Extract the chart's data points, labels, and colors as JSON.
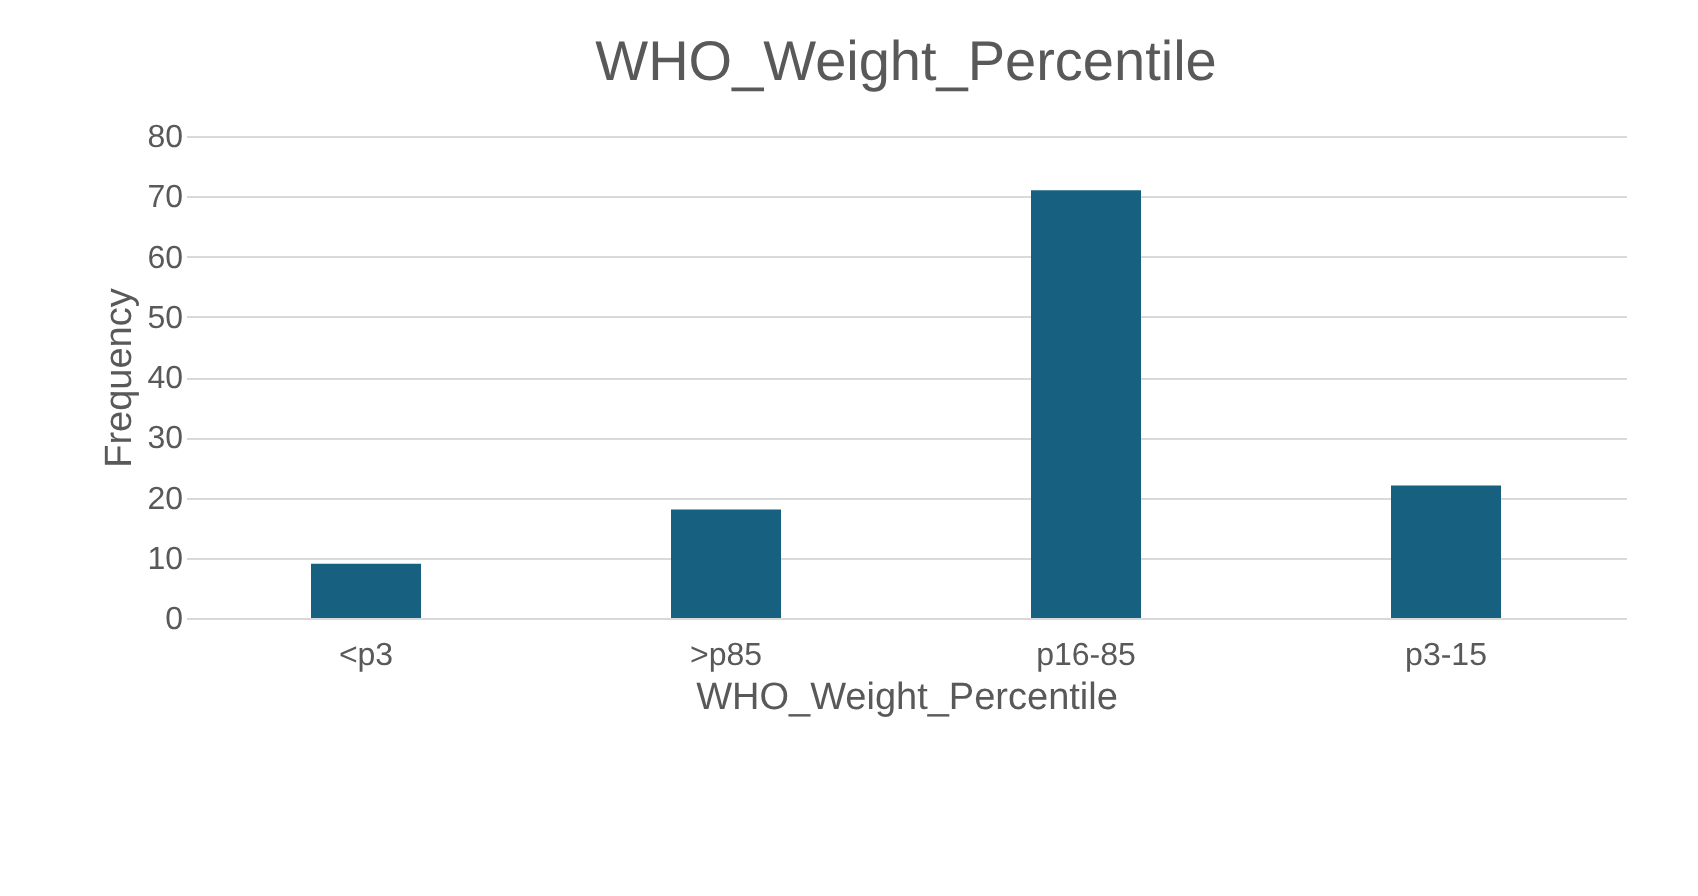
{
  "chart_data": {
    "type": "bar",
    "title": "WHO_Weight_Percentile",
    "xlabel": "WHO_Weight_Percentile",
    "ylabel": "Frequency",
    "categories": [
      "<p3",
      ">p85",
      "p16-85",
      "p3-15"
    ],
    "values": [
      9,
      18,
      71,
      22
    ],
    "color": "#17607f",
    "ylim": [
      0,
      80
    ],
    "yticks": [
      0,
      10,
      20,
      30,
      40,
      50,
      60,
      70,
      80
    ],
    "grid": "y"
  }
}
